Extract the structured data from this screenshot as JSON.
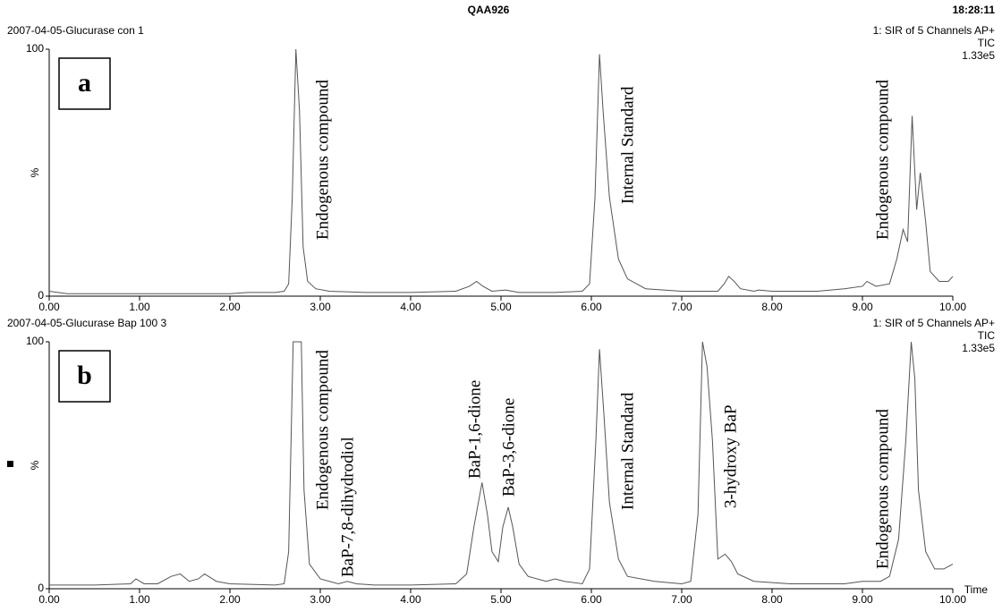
{
  "header": {
    "title": "QAA926",
    "time": "18:28:11"
  },
  "chart_data": [
    {
      "type": "line",
      "panel_label": "a",
      "title": "2007-04-05-Glucurase con 1",
      "channel": "1: SIR of 5 Channels AP+",
      "trace": "TIC",
      "scale": "1.33e5",
      "ylabel": "%",
      "xlim": [
        0,
        10
      ],
      "ylim": [
        0,
        100
      ],
      "yticks": [
        0,
        100
      ],
      "xticks": [
        {
          "value": 0,
          "label": "0.00"
        },
        {
          "value": 1,
          "label": "1.00"
        },
        {
          "value": 2,
          "label": "2.00"
        },
        {
          "value": 3,
          "label": "3.00"
        },
        {
          "value": 4,
          "label": "4.00"
        },
        {
          "value": 5,
          "label": "5.00"
        },
        {
          "value": 6,
          "label": "6.00"
        },
        {
          "value": 7,
          "label": "7.00"
        },
        {
          "value": 8,
          "label": "8.00"
        },
        {
          "value": 9,
          "label": "9.00"
        },
        {
          "value": 10,
          "label": "10.00"
        }
      ],
      "color": "#555555",
      "x": [
        0,
        0.2,
        0.5,
        1.0,
        1.5,
        2.0,
        2.2,
        2.5,
        2.6,
        2.65,
        2.69,
        2.73,
        2.77,
        2.81,
        2.86,
        2.95,
        3.1,
        3.5,
        4.0,
        4.5,
        4.65,
        4.73,
        4.8,
        4.9,
        5.05,
        5.2,
        5.6,
        5.9,
        5.98,
        6.04,
        6.09,
        6.13,
        6.2,
        6.3,
        6.4,
        6.6,
        7.0,
        7.4,
        7.47,
        7.52,
        7.58,
        7.65,
        7.8,
        7.85,
        8.0,
        8.5,
        8.8,
        9.0,
        9.05,
        9.15,
        9.3,
        9.38,
        9.45,
        9.5,
        9.55,
        9.6,
        9.64,
        9.7,
        9.75,
        9.85,
        9.95,
        10.0
      ],
      "values": [
        2,
        1,
        1,
        1,
        1,
        1,
        1.5,
        1.5,
        2,
        5,
        40,
        100,
        75,
        20,
        6,
        3,
        2,
        1.5,
        1.5,
        2,
        4,
        6,
        4,
        2,
        2.5,
        1.5,
        1.5,
        2,
        5,
        40,
        98,
        75,
        40,
        15,
        7,
        3,
        2,
        2,
        5,
        8,
        6,
        3,
        2,
        2.5,
        2,
        2,
        3,
        4,
        6,
        4,
        5,
        15,
        27,
        22,
        73,
        35,
        50,
        30,
        10,
        6,
        6,
        8
      ],
      "annotations": [
        "Endogenous compound",
        "Internal Standard",
        "Endogenous compound"
      ]
    },
    {
      "type": "line",
      "panel_label": "b",
      "title": "2007-04-05-Glucurase Bap 100 3",
      "channel": "1: SIR of 5 Channels AP+",
      "trace": "TIC",
      "scale": "1.33e5",
      "ylabel": "%",
      "xlabel": "Time",
      "xlim": [
        0,
        10
      ],
      "ylim": [
        0,
        100
      ],
      "yticks": [
        0,
        100
      ],
      "xticks": [
        {
          "value": 0,
          "label": "0.00"
        },
        {
          "value": 1,
          "label": "1.00"
        },
        {
          "value": 2,
          "label": "2.00"
        },
        {
          "value": 3,
          "label": "3.00"
        },
        {
          "value": 4,
          "label": "4.00"
        },
        {
          "value": 5,
          "label": "5.00"
        },
        {
          "value": 6,
          "label": "6.00"
        },
        {
          "value": 7,
          "label": "7.00"
        },
        {
          "value": 8,
          "label": "8.00"
        },
        {
          "value": 9,
          "label": "9.00"
        },
        {
          "value": 10,
          "label": "10.00"
        }
      ],
      "color": "#555555",
      "x": [
        0,
        0.5,
        0.9,
        0.96,
        1.05,
        1.2,
        1.35,
        1.45,
        1.55,
        1.65,
        1.72,
        1.85,
        2.0,
        2.5,
        2.6,
        2.65,
        2.7,
        2.79,
        2.82,
        2.88,
        3.0,
        3.2,
        3.3,
        3.4,
        3.6,
        4.0,
        4.5,
        4.62,
        4.7,
        4.79,
        4.85,
        4.9,
        4.97,
        5.02,
        5.08,
        5.13,
        5.2,
        5.3,
        5.5,
        5.6,
        5.7,
        5.9,
        5.98,
        6.05,
        6.09,
        6.14,
        6.2,
        6.3,
        6.4,
        6.7,
        7.0,
        7.1,
        7.18,
        7.23,
        7.28,
        7.34,
        7.4,
        7.48,
        7.55,
        7.62,
        7.8,
        8.2,
        8.8,
        9.0,
        9.2,
        9.3,
        9.4,
        9.48,
        9.54,
        9.58,
        9.62,
        9.7,
        9.8,
        9.9,
        10.0
      ],
      "values": [
        1.5,
        1.5,
        2,
        4,
        2,
        2,
        5,
        6,
        3,
        4,
        6,
        3,
        2,
        1.5,
        2,
        15,
        100,
        100,
        40,
        10,
        4,
        2,
        3,
        2,
        1.5,
        1.5,
        2,
        6,
        25,
        43,
        30,
        15,
        11,
        25,
        33,
        25,
        10,
        5,
        3,
        4,
        3,
        2,
        8,
        60,
        97,
        70,
        35,
        12,
        5,
        3,
        2,
        3,
        30,
        100,
        90,
        60,
        12,
        14,
        11,
        6,
        3,
        2,
        2,
        3,
        3,
        5,
        20,
        60,
        100,
        85,
        40,
        15,
        8,
        8,
        10
      ],
      "annotations": [
        "Endogenous compound",
        "BaP-7,8-dihydrodiol",
        "BaP-1,6-dione",
        "BaP-3,6-dione",
        "Internal Standard",
        "3-hydroxy BaP",
        "Endogenous compound"
      ]
    }
  ]
}
